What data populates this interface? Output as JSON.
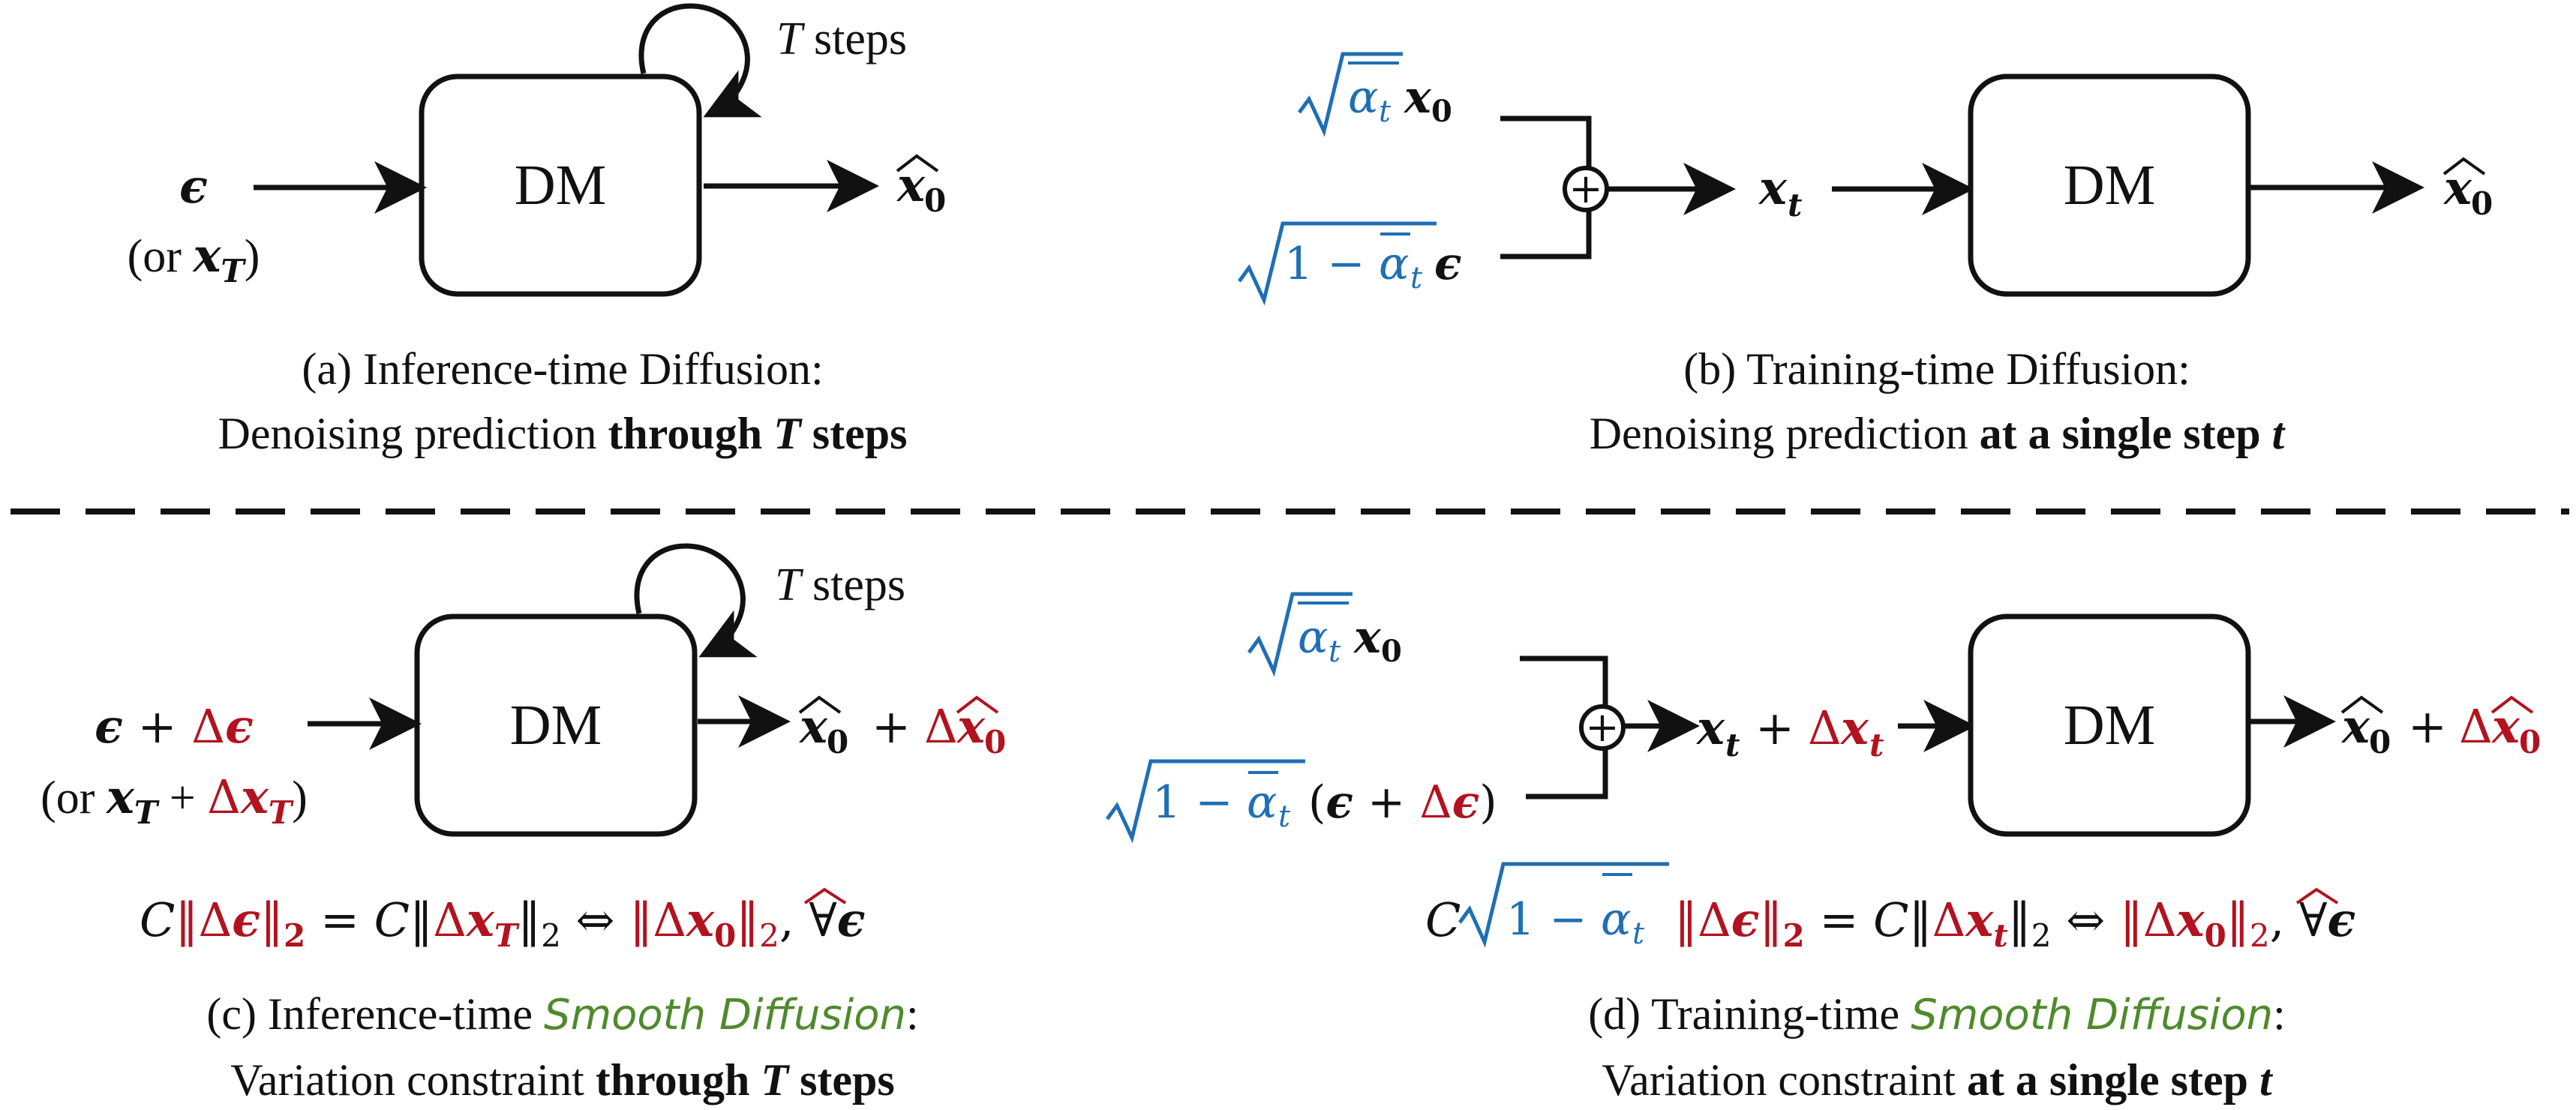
{
  "colors": {
    "black": "#111111",
    "blue": "#1f6fb4",
    "red": "#b3121f",
    "green": "#4f8a2b"
  },
  "panel_a": {
    "block": "DM",
    "loop": "T steps",
    "input": "ϵ",
    "input_alt": "(or x_T)",
    "output": "x̂₀",
    "caption_line1": "(a) Inference-time Diffusion:",
    "caption_line2_prefix": "Denoising prediction ",
    "caption_line2_bold": "through T steps"
  },
  "panel_b": {
    "block": "DM",
    "signal": "√(ᾱ_t) x₀",
    "noise": "√(1 − ᾱ_t) ϵ",
    "sum_symbol": "+",
    "mid": "x_t",
    "output": "x̂₀",
    "caption_line1": "(b) Training-time Diffusion:",
    "caption_line2_prefix": "Denoising prediction ",
    "caption_line2_bold": "at a single step t"
  },
  "panel_c": {
    "block": "DM",
    "loop": "T steps",
    "input": "ϵ + Δϵ",
    "input_alt": "(or x_T + Δx_T)",
    "output": "x̂₀ + Δx̂₀",
    "equation": "C‖Δϵ‖₂ = C‖Δx_T‖₂ ⇔ ‖Δx̂₀‖₂, ∀ϵ",
    "caption_line1_prefix": "(c) Inference-time ",
    "caption_line1_hand": "Smooth Diffusion",
    "caption_line1_suffix": ":",
    "caption_line2_prefix": "Variation constraint ",
    "caption_line2_bold": "through T steps"
  },
  "panel_d": {
    "block": "DM",
    "signal": "√(ᾱ_t) x₀",
    "noise": "√(1 − ᾱ_t)(ϵ + Δϵ)",
    "sum_symbol": "+",
    "mid": "x_t + Δx_t",
    "output": "x̂₀ + Δx̂₀",
    "equation": "C√(1 − ᾱ_t)‖Δϵ‖₂ = C‖Δx_t‖₂ ⇔ ‖Δx̂₀‖₂, ∀ϵ",
    "caption_line1_prefix": "(d) Training-time ",
    "caption_line1_hand": "Smooth Diffusion",
    "caption_line1_suffix": ":",
    "caption_line2_prefix": "Variation constraint ",
    "caption_line2_bold": "at a single step t"
  }
}
